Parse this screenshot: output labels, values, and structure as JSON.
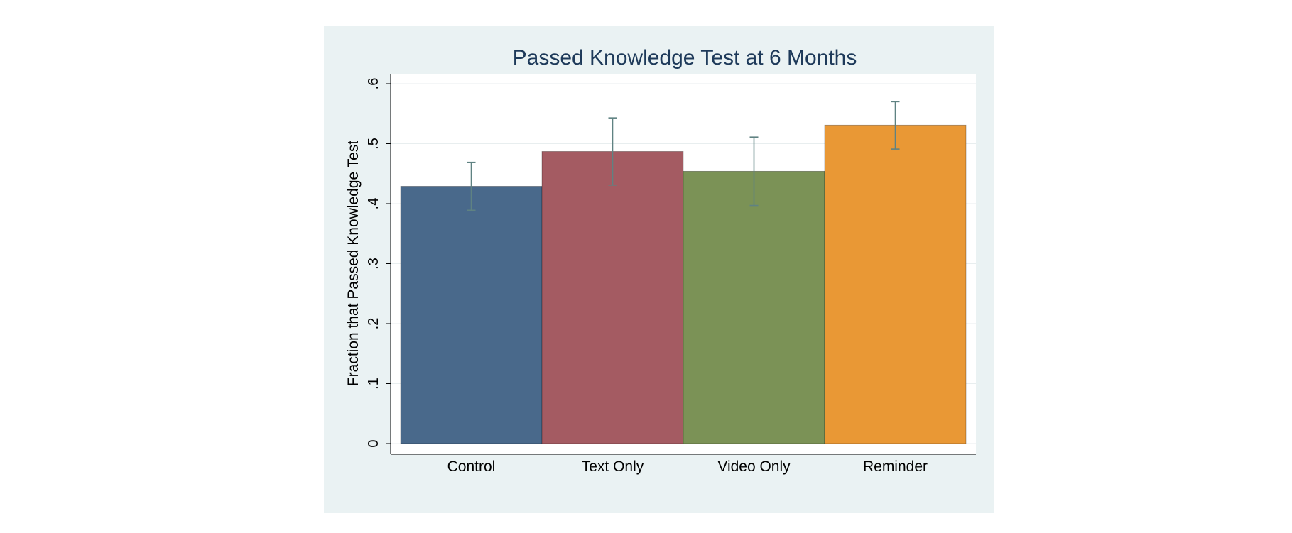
{
  "chart_data": {
    "type": "bar",
    "title": "Passed Knowledge Test at 6 Months",
    "ylabel": "Fraction that Passed Knowledge Test",
    "xlabel": "",
    "ylim": [
      0,
      0.6
    ],
    "yticks": [
      {
        "value": 0,
        "label": "0"
      },
      {
        "value": 0.1,
        "label": ".1"
      },
      {
        "value": 0.2,
        "label": ".2"
      },
      {
        "value": 0.3,
        "label": ".3"
      },
      {
        "value": 0.4,
        "label": ".4"
      },
      {
        "value": 0.5,
        "label": ".5"
      },
      {
        "value": 0.6,
        "label": ".6"
      }
    ],
    "grid": true,
    "categories": [
      "Control",
      "Text Only",
      "Video Only",
      "Reminder"
    ],
    "values": [
      0.429,
      0.487,
      0.454,
      0.531
    ],
    "error_bars": [
      {
        "low": 0.389,
        "high": 0.469
      },
      {
        "low": 0.431,
        "high": 0.543
      },
      {
        "low": 0.397,
        "high": 0.511
      },
      {
        "low": 0.491,
        "high": 0.57
      }
    ],
    "colors": [
      "#49698B",
      "#A45B62",
      "#7B9256",
      "#E99835"
    ],
    "error_bar_color": "#5F8282",
    "background_color": "#EAF2F3",
    "plot_background_color": "#FFFFFF",
    "title_color": "#1E3A5A"
  }
}
